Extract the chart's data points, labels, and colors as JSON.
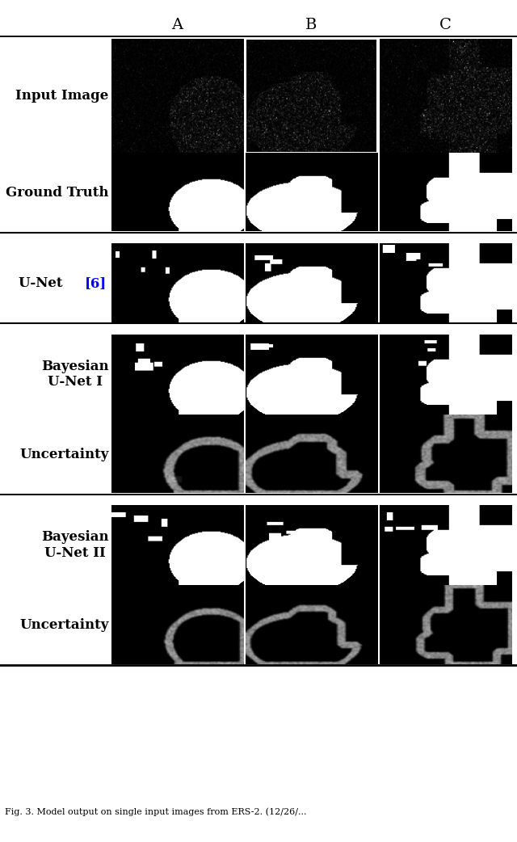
{
  "col_labels": [
    "A",
    "B",
    "C"
  ],
  "unet_ref_color": "#0000FF",
  "background_color": "#ffffff",
  "label_fontsize": 12,
  "col_label_fontsize": 14,
  "fig_width": 6.4,
  "fig_height": 10.42,
  "caption": "Fig. 3. Model output on single input images from ERS-2. (12/26/..."
}
